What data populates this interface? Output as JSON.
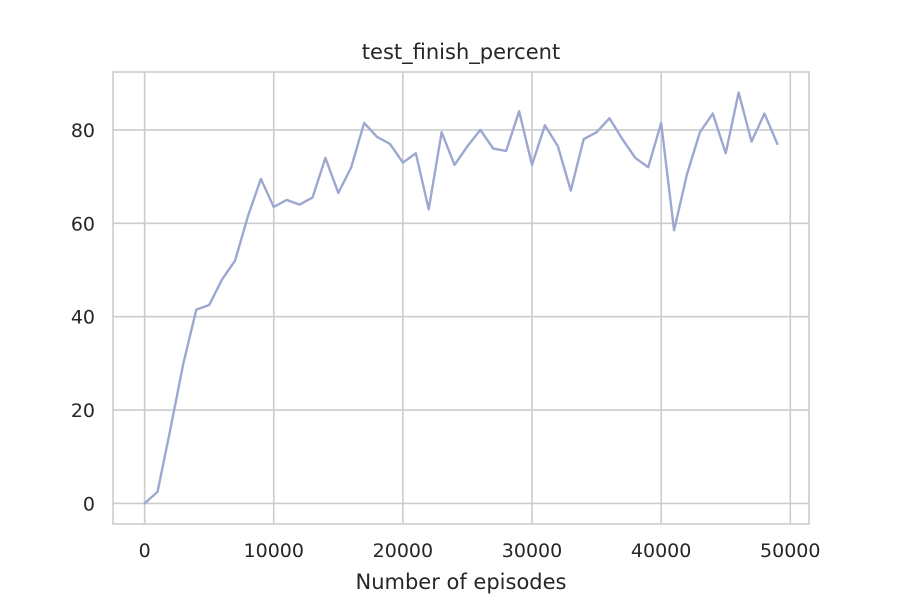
{
  "chart_data": {
    "type": "line",
    "title": "test_finish_percent",
    "xlabel": "Number of episodes",
    "ylabel": "",
    "xlim": [
      -2450,
      51450
    ],
    "ylim": [
      -4.4,
      92.4
    ],
    "xticks": [
      0,
      10000,
      20000,
      30000,
      40000,
      50000
    ],
    "yticks": [
      0,
      20,
      40,
      60,
      80
    ],
    "grid": true,
    "series": [
      {
        "color": "#9da8d1",
        "x": [
          0,
          1000,
          2000,
          3000,
          4000,
          5000,
          6000,
          7000,
          8000,
          9000,
          10000,
          11000,
          12000,
          13000,
          14000,
          15000,
          16000,
          17000,
          18000,
          19000,
          20000,
          21000,
          22000,
          23000,
          24000,
          25000,
          26000,
          27000,
          28000,
          29000,
          30000,
          31000,
          32000,
          33000,
          34000,
          35000,
          36000,
          37000,
          38000,
          39000,
          40000,
          41000,
          42000,
          43000,
          44000,
          45000,
          46000,
          47000,
          48000,
          49000
        ],
        "y": [
          0,
          2.5,
          16,
          30,
          41.5,
          42.5,
          48,
          52,
          61.5,
          69.5,
          63.5,
          65,
          64,
          65.5,
          74,
          66.5,
          72,
          81.5,
          78.5,
          77,
          73,
          75,
          63,
          79.5,
          72.5,
          76.5,
          80,
          76,
          75.5,
          84,
          72.5,
          81,
          76.5,
          67,
          78,
          79.5,
          82.5,
          78,
          74,
          72,
          81.5,
          58.5,
          70.5,
          79.5,
          83.5,
          75,
          88,
          77.5,
          83.5,
          77
        ]
      }
    ]
  }
}
